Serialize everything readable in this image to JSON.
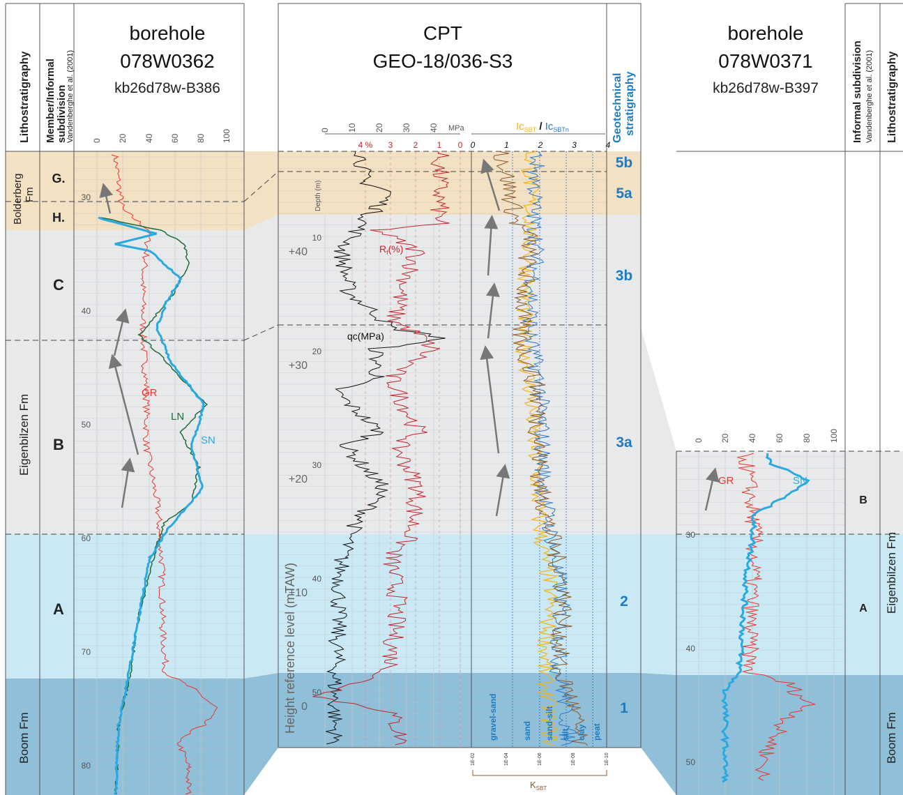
{
  "colors": {
    "zone_bolderberg": "#f3e1c4",
    "zone_eig_upper": "#e8e9eb",
    "zone_eig_lower": "#cbe9f4",
    "zone_boom": "#8fbfd9",
    "gr": "#e8362c",
    "sn": "#2aa9e0",
    "ln": "#1f6b3a",
    "qc": "#111111",
    "rf": "#c1272d",
    "ic_sbt": "#f0b41e",
    "ic_sbtn": "#2a78c8",
    "kbt": "#8b5a2b",
    "geo_blue": "#1f7bbf"
  },
  "headers": {
    "lithostratigraphy": "Lithostratigraphy",
    "member_line1": "Member/Informal",
    "member_line2": "subdivision",
    "member_ref": "Vandenberghe et al. (2001)",
    "informal_line1": "Informal subdivision",
    "informal_ref": "Vandenberghe et al. (2001)",
    "geotech_line1": "Geotechnical",
    "geotech_line2": "stratigraphy"
  },
  "borehole_left": {
    "title": "borehole",
    "id": "078W0362",
    "code": "kb26d78w-B386",
    "ticks": [
      "0",
      "20",
      "40",
      "60",
      "80",
      "100"
    ],
    "depth_ticks": [
      "30",
      "40",
      "50",
      "60",
      "70",
      "80"
    ],
    "members": [
      "G.",
      "H.",
      "C",
      "B",
      "A"
    ],
    "formations": [
      "Bolderberg\nFm",
      "Eigenbilzen Fm",
      "Boom Fm"
    ],
    "curve_labels": {
      "gr": "GR",
      "ln": "LN",
      "sn": "SN"
    }
  },
  "cpt": {
    "title": "CPT",
    "id": "GEO-18/036-S3",
    "qc_ticks": [
      "0",
      "10",
      "20",
      "30",
      "40"
    ],
    "qc_unit": "MPa",
    "rf_ticks": [
      "4 %",
      "3",
      "2",
      "1",
      "0"
    ],
    "depth_label": "Depth (m)",
    "depth_ticks": [
      "10",
      "20",
      "30",
      "40",
      "50"
    ],
    "height_ticks": [
      "+40",
      "+30",
      "+20",
      "+10",
      "0"
    ],
    "height_label": "Height reference level (mTAW)",
    "qc_label": "qc(MPa)",
    "rf_label": "R",
    "rf_sub": "f",
    "rf_suffix": "(%)",
    "ic_title_a": "Ic",
    "ic_title_a_sub": "SBT",
    "ic_title_sep": " / ",
    "ic_title_b": "Ic",
    "ic_title_b_sub": "SBTn",
    "ic_ticks": [
      "0",
      "1",
      "2",
      "3",
      "4"
    ],
    "soil_classes": [
      "gravel-sand",
      "sand",
      "sand-silt",
      "silt",
      "clay",
      "peat"
    ],
    "k_ticks": [
      "1E-02",
      "1E-04",
      "1E-06",
      "1E-08",
      "1E-10"
    ],
    "k_label": "K",
    "k_sub": "SBT",
    "units": [
      "5b",
      "5a",
      "3b",
      "3a",
      "2",
      "1"
    ]
  },
  "borehole_right": {
    "title": "borehole",
    "id": "078W0371",
    "code": "kb26d78w-B397",
    "ticks": [
      "0",
      "20",
      "40",
      "60",
      "80",
      "100"
    ],
    "depth_ticks": [
      "30",
      "40",
      "50"
    ],
    "members": [
      "B",
      "A"
    ],
    "formations": [
      "Eigenbilzen Fm",
      "Boom Fm"
    ],
    "curve_labels": {
      "gr": "GR",
      "sn": "SN"
    }
  }
}
